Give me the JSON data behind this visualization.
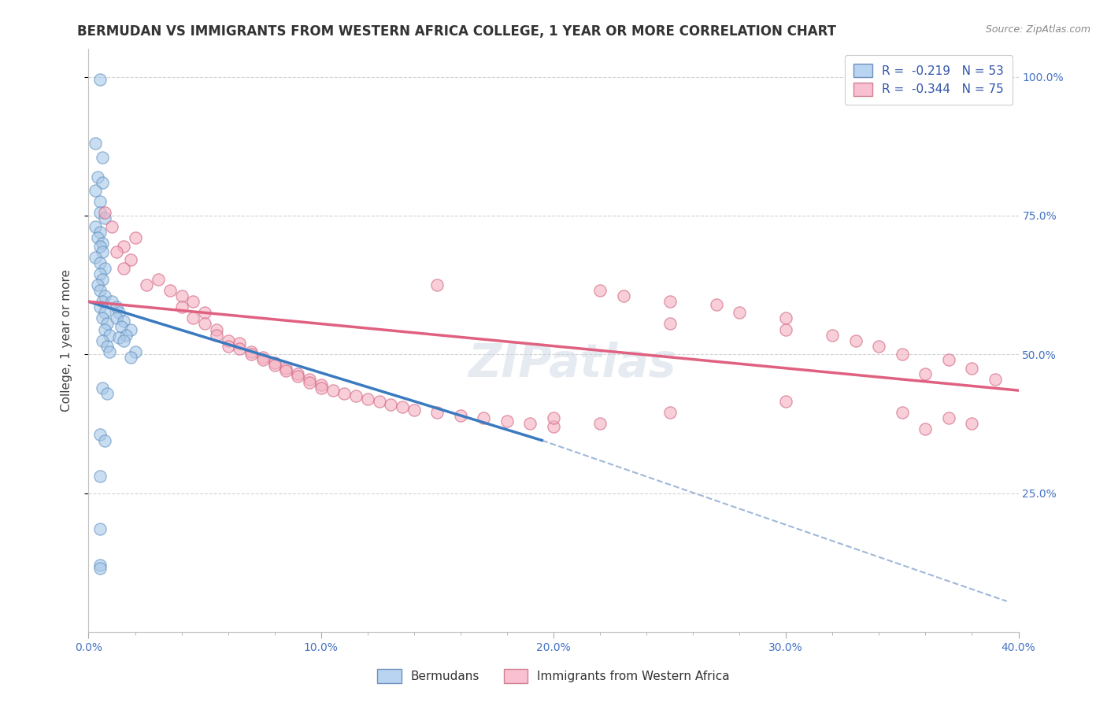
{
  "title": "BERMUDAN VS IMMIGRANTS FROM WESTERN AFRICA COLLEGE, 1 YEAR OR MORE CORRELATION CHART",
  "source_text": "Source: ZipAtlas.com",
  "ylabel_text": "College, 1 year or more",
  "xlim": [
    0.0,
    0.4
  ],
  "ylim": [
    0.0,
    1.05
  ],
  "xtick_labels": [
    "0.0%",
    "",
    "",
    "",
    "",
    "10.0%",
    "",
    "",
    "",
    "",
    "20.0%",
    "",
    "",
    "",
    "",
    "30.0%",
    "",
    "",
    "",
    "",
    "40.0%"
  ],
  "xtick_values": [
    0.0,
    0.02,
    0.04,
    0.06,
    0.08,
    0.1,
    0.12,
    0.14,
    0.16,
    0.18,
    0.2,
    0.22,
    0.24,
    0.26,
    0.28,
    0.3,
    0.32,
    0.34,
    0.36,
    0.38,
    0.4
  ],
  "ytick_values": [
    0.25,
    0.5,
    0.75,
    1.0
  ],
  "right_ytick_labels": [
    "100.0%",
    "75.0%",
    "50.0%",
    "25.0%"
  ],
  "right_ytick_values": [
    1.0,
    0.75,
    0.5,
    0.25
  ],
  "blue_dots": [
    [
      0.005,
      0.995
    ],
    [
      0.003,
      0.88
    ],
    [
      0.006,
      0.855
    ],
    [
      0.004,
      0.82
    ],
    [
      0.006,
      0.81
    ],
    [
      0.003,
      0.795
    ],
    [
      0.005,
      0.775
    ],
    [
      0.005,
      0.755
    ],
    [
      0.007,
      0.745
    ],
    [
      0.003,
      0.73
    ],
    [
      0.005,
      0.72
    ],
    [
      0.004,
      0.71
    ],
    [
      0.006,
      0.7
    ],
    [
      0.005,
      0.695
    ],
    [
      0.006,
      0.685
    ],
    [
      0.003,
      0.675
    ],
    [
      0.005,
      0.665
    ],
    [
      0.007,
      0.655
    ],
    [
      0.005,
      0.645
    ],
    [
      0.006,
      0.635
    ],
    [
      0.004,
      0.625
    ],
    [
      0.005,
      0.615
    ],
    [
      0.007,
      0.605
    ],
    [
      0.006,
      0.595
    ],
    [
      0.005,
      0.585
    ],
    [
      0.007,
      0.575
    ],
    [
      0.006,
      0.565
    ],
    [
      0.008,
      0.555
    ],
    [
      0.007,
      0.545
    ],
    [
      0.009,
      0.535
    ],
    [
      0.006,
      0.525
    ],
    [
      0.008,
      0.515
    ],
    [
      0.009,
      0.505
    ],
    [
      0.01,
      0.595
    ],
    [
      0.012,
      0.585
    ],
    [
      0.013,
      0.575
    ],
    [
      0.012,
      0.565
    ],
    [
      0.015,
      0.56
    ],
    [
      0.014,
      0.55
    ],
    [
      0.018,
      0.545
    ],
    [
      0.016,
      0.535
    ],
    [
      0.013,
      0.53
    ],
    [
      0.015,
      0.525
    ],
    [
      0.02,
      0.505
    ],
    [
      0.018,
      0.495
    ],
    [
      0.006,
      0.44
    ],
    [
      0.008,
      0.43
    ],
    [
      0.005,
      0.355
    ],
    [
      0.007,
      0.345
    ],
    [
      0.005,
      0.28
    ],
    [
      0.005,
      0.185
    ],
    [
      0.005,
      0.12
    ],
    [
      0.005,
      0.115
    ]
  ],
  "pink_dots": [
    [
      0.007,
      0.755
    ],
    [
      0.01,
      0.73
    ],
    [
      0.02,
      0.71
    ],
    [
      0.015,
      0.695
    ],
    [
      0.012,
      0.685
    ],
    [
      0.018,
      0.67
    ],
    [
      0.015,
      0.655
    ],
    [
      0.03,
      0.635
    ],
    [
      0.025,
      0.625
    ],
    [
      0.035,
      0.615
    ],
    [
      0.04,
      0.605
    ],
    [
      0.045,
      0.595
    ],
    [
      0.04,
      0.585
    ],
    [
      0.05,
      0.575
    ],
    [
      0.045,
      0.565
    ],
    [
      0.05,
      0.555
    ],
    [
      0.055,
      0.545
    ],
    [
      0.055,
      0.535
    ],
    [
      0.06,
      0.525
    ],
    [
      0.065,
      0.52
    ],
    [
      0.06,
      0.515
    ],
    [
      0.065,
      0.51
    ],
    [
      0.07,
      0.505
    ],
    [
      0.07,
      0.5
    ],
    [
      0.075,
      0.495
    ],
    [
      0.075,
      0.49
    ],
    [
      0.08,
      0.485
    ],
    [
      0.08,
      0.48
    ],
    [
      0.085,
      0.475
    ],
    [
      0.085,
      0.47
    ],
    [
      0.09,
      0.465
    ],
    [
      0.09,
      0.46
    ],
    [
      0.095,
      0.455
    ],
    [
      0.095,
      0.45
    ],
    [
      0.1,
      0.445
    ],
    [
      0.1,
      0.44
    ],
    [
      0.105,
      0.435
    ],
    [
      0.11,
      0.43
    ],
    [
      0.115,
      0.425
    ],
    [
      0.12,
      0.42
    ],
    [
      0.125,
      0.415
    ],
    [
      0.13,
      0.41
    ],
    [
      0.135,
      0.405
    ],
    [
      0.14,
      0.4
    ],
    [
      0.15,
      0.395
    ],
    [
      0.16,
      0.39
    ],
    [
      0.17,
      0.385
    ],
    [
      0.18,
      0.38
    ],
    [
      0.19,
      0.375
    ],
    [
      0.2,
      0.37
    ],
    [
      0.15,
      0.625
    ],
    [
      0.22,
      0.615
    ],
    [
      0.23,
      0.605
    ],
    [
      0.25,
      0.595
    ],
    [
      0.27,
      0.59
    ],
    [
      0.28,
      0.575
    ],
    [
      0.3,
      0.565
    ],
    [
      0.25,
      0.555
    ],
    [
      0.3,
      0.545
    ],
    [
      0.32,
      0.535
    ],
    [
      0.33,
      0.525
    ],
    [
      0.34,
      0.515
    ],
    [
      0.35,
      0.5
    ],
    [
      0.37,
      0.49
    ],
    [
      0.38,
      0.475
    ],
    [
      0.36,
      0.465
    ],
    [
      0.39,
      0.455
    ],
    [
      0.35,
      0.395
    ],
    [
      0.37,
      0.385
    ],
    [
      0.38,
      0.375
    ],
    [
      0.36,
      0.365
    ],
    [
      0.3,
      0.415
    ],
    [
      0.25,
      0.395
    ],
    [
      0.2,
      0.385
    ],
    [
      0.22,
      0.375
    ]
  ],
  "blue_line_x": [
    0.0,
    0.195
  ],
  "blue_line_y": [
    0.595,
    0.345
  ],
  "pink_line_x": [
    0.0,
    0.4
  ],
  "pink_line_y": [
    0.595,
    0.435
  ],
  "dashed_line_x": [
    0.195,
    0.395
  ],
  "dashed_line_y": [
    0.345,
    0.055
  ],
  "legend_blue_label": "R =  -0.219   N = 53",
  "legend_pink_label": "R =  -0.344   N = 75",
  "legend_bermuda_label": "Bermudans",
  "legend_western_label": "Immigrants from Western Africa",
  "blue_dot_color": "#a8c8e8",
  "pink_dot_color": "#f4b0c0",
  "blue_line_color": "#3a7abf",
  "pink_line_color": "#e06080",
  "dashed_line_color": "#a0b8d8",
  "watermark": "ZIPatlas",
  "title_fontsize": 12,
  "axis_label_fontsize": 11,
  "tick_fontsize": 10,
  "legend_fontsize": 11,
  "dot_size": 120,
  "dot_alpha": 0.6
}
